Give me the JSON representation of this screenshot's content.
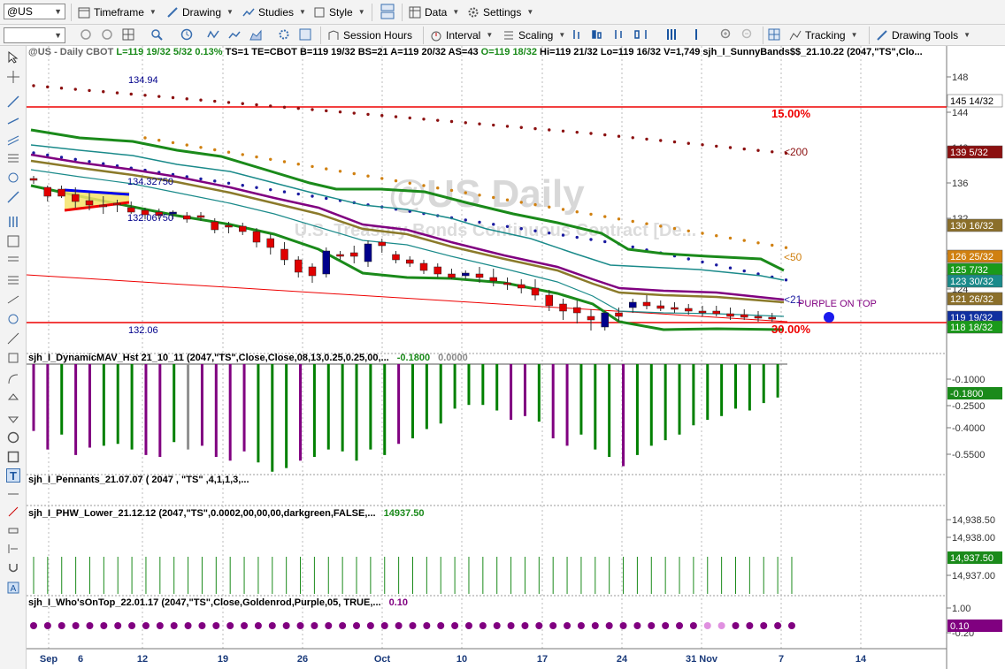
{
  "toolbar1": {
    "symbol": "@US",
    "timeframe": "Timeframe",
    "drawing": "Drawing",
    "studies": "Studies",
    "style": "Style",
    "data": "Data",
    "settings": "Settings"
  },
  "toolbar2": {
    "session_hours": "Session Hours",
    "interval": "Interval",
    "scaling": "Scaling",
    "tracking": "Tracking",
    "drawing_tools": "Drawing Tools"
  },
  "colors": {
    "up": "#00008b",
    "down": "#e00000",
    "green": "#008000",
    "purple": "#800080",
    "red": "#ee0000",
    "goldenrod": "#a08a2a"
  },
  "price_pane": {
    "header_symbol": "@US - Daily  CBOT",
    "header_stats": "L=119 19/32  5/32  0.13%",
    "header_rest": "TS=1  TE=CBOT  B=119 19/32  BS=21  A=119 20/32  AS=43",
    "header_o": "O=119 18/32",
    "header_tail": "Hi=119 21/32  Lo=119 16/32  V=1,749  sjh_I_SunnyBands$$_21.10.22 (2047,\"TS\",Clo...",
    "watermark_title": "@US Daily",
    "watermark_sub": "U.S. Treasury Bonds Continuous Contract [De...",
    "hi_label": "134.94",
    "lbl_a": "134.32750",
    "lbl_b": "132.06750",
    "lo_label": "132.06",
    "pct_top": "15.00%",
    "pct_bot": "30.00%",
    "lbl_200": "<200",
    "lbl_50": "<50",
    "lbl_21": "<21",
    "purple_on_top": "PURPLE ON TOP",
    "axis_ticks": [
      "148",
      "144",
      "140",
      "136",
      "132",
      "128",
      "124",
      "120"
    ],
    "axis_tags": [
      {
        "text": "145 14/32",
        "color": "#ffffff",
        "fg": "#000"
      },
      {
        "text": "139 5/32",
        "color": "#8b1010",
        "fg": "#fff"
      },
      {
        "text": "130 16/32",
        "color": "#8b6f2a",
        "fg": "#fff"
      },
      {
        "text": "126 25/32",
        "color": "#d08010",
        "fg": "#fff"
      },
      {
        "text": "125 7/32",
        "color": "#1a9a1a",
        "fg": "#fff"
      },
      {
        "text": "123 30/32",
        "color": "#1a8a8a",
        "fg": "#fff"
      },
      {
        "text": "121 26/32",
        "color": "#8b6f2a",
        "fg": "#fff"
      },
      {
        "text": "119 19/32",
        "color": "#1030a0",
        "fg": "#fff"
      },
      {
        "text": "118 18/32",
        "color": "#1a9a1a",
        "fg": "#fff"
      }
    ]
  },
  "pane2": {
    "title": "sjh_I_DynamicMAV_Hst 21_10_11 (2047,\"TS\",Close,Close,08,13,0.25,0.25,00,...",
    "v1": "-0.1800",
    "v2": "0.0000",
    "ticks": [
      "-0.1000",
      "-0.2500",
      "-0.4000",
      "-0.5500"
    ],
    "tag": "-0.1800"
  },
  "pane3": {
    "title": "sjh_I_Pennants_21.07.07 ( 2047 , \"TS\" ,4,1,1,3,..."
  },
  "pane4": {
    "title": "sjh_I_PHW_Lower_21.12.12 (2047,\"TS\",0.0002,00,00,00,darkgreen,FALSE,...",
    "v1": "14937.50",
    "ticks": [
      "14,938.50",
      "14,938.00",
      "14,937.00"
    ],
    "tag": "14,937.50"
  },
  "pane5": {
    "title": "sjh_I_Who'sOnTop_22.01.17 (2047,\"TS\",Close,Goldenrod,Purple,05, TRUE,...",
    "v1": "0.10",
    "ticks": [
      "1.00",
      "-0.20"
    ],
    "tag": "0.10"
  },
  "x_axis": [
    "Sep",
    "6",
    "12",
    "19",
    "26",
    "Oct",
    "10",
    "17",
    "24",
    "31 Nov",
    "7",
    "14"
  ]
}
